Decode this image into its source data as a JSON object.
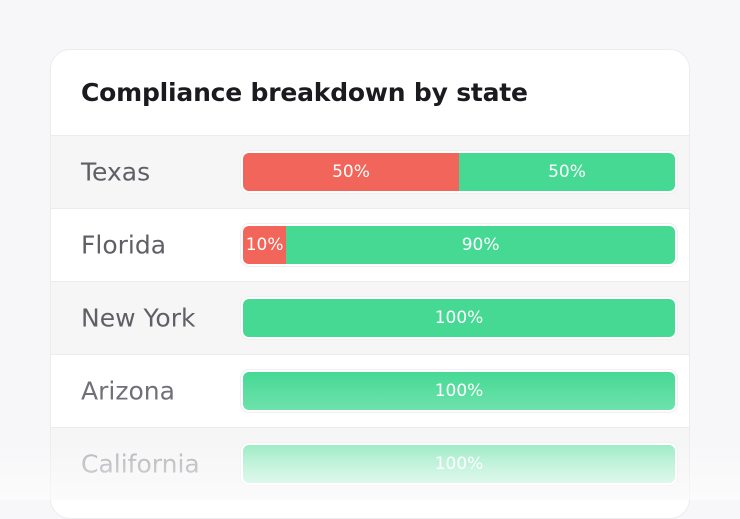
{
  "card": {
    "title": "Compliance breakdown by state"
  },
  "colors": {
    "non_compliant": "#f1655a",
    "compliant": "#46d994"
  },
  "rows": [
    {
      "state": "Texas",
      "segments": [
        {
          "type": "non_compliant",
          "value": 50,
          "label": "50%"
        },
        {
          "type": "compliant",
          "value": 50,
          "label": "50%"
        }
      ]
    },
    {
      "state": "Florida",
      "segments": [
        {
          "type": "non_compliant",
          "value": 10,
          "label": "10%"
        },
        {
          "type": "compliant",
          "value": 90,
          "label": "90%"
        }
      ]
    },
    {
      "state": "New York",
      "segments": [
        {
          "type": "compliant",
          "value": 100,
          "label": "100%"
        }
      ]
    },
    {
      "state": "Arizona",
      "segments": [
        {
          "type": "compliant",
          "value": 100,
          "label": "100%"
        }
      ]
    },
    {
      "state": "California",
      "segments": [
        {
          "type": "compliant",
          "value": 100,
          "label": "100%"
        }
      ]
    }
  ]
}
